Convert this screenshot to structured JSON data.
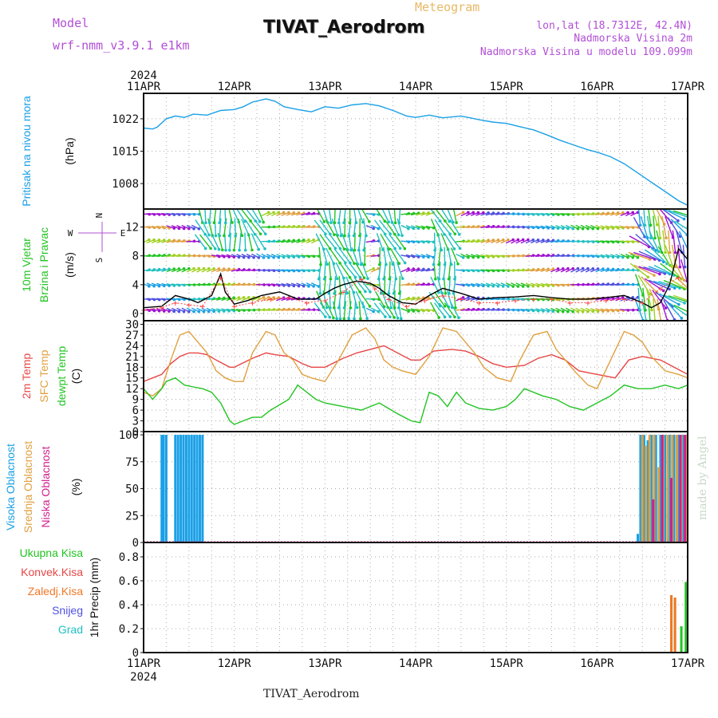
{
  "header": {
    "model_label": "Model",
    "model_name": "wrf-nmm_v3.9.1 e1km",
    "title": "TIVAT_Aerodrom",
    "meteogram_label": "Meteogram",
    "coords": "lon,lat (18.7312E, 42.4N)",
    "elev_station": "Nadmorska Visina 2m",
    "elev_model": "Nadmorska Visina u modelu 109.099m"
  },
  "footer": {
    "station": "TIVAT_Aerodrom",
    "credit": "made by Angel"
  },
  "colors": {
    "pressure": "#1aa0e6",
    "temp2m": "#e64646",
    "sfc_temp": "#e0a040",
    "dewpt": "#22c422",
    "wind_speed": "#000000",
    "wind_gust": "#ff4040",
    "high_cloud": "#1aa0e6",
    "mid_cloud": "#e0a040",
    "low_cloud": "#d0208c",
    "precip_total": "#22c422",
    "precip_conv": "#e64646",
    "precip_frozen": "#f07828",
    "snow": "#5050e0",
    "graupel": "#20c0c0",
    "wind_arrows": [
      "#a010d0",
      "#5050e0",
      "#1aa0e6",
      "#20c0c0",
      "#22c422",
      "#a0d020",
      "#e0a040"
    ]
  },
  "chart_data": {
    "type": "line",
    "year": "2024",
    "x_ticks": [
      "11APR",
      "12APR",
      "13APR",
      "14APR",
      "15APR",
      "16APR",
      "17APR"
    ],
    "xlim_days": [
      0,
      6
    ],
    "grid": "dotted",
    "panels": [
      {
        "id": "pressure",
        "ylabels": [
          "Pritisak na nivou mora",
          "(hPa)"
        ],
        "yticks": [
          1008,
          1015,
          1022
        ],
        "ylim": [
          1002.5,
          1027.5
        ],
        "series": [
          {
            "name": "Pritisak na nivou mora",
            "type": "line",
            "x": [
              0,
              0.1,
              0.15,
              0.25,
              0.35,
              0.45,
              0.55,
              0.7,
              0.85,
              1.0,
              1.1,
              1.2,
              1.35,
              1.45,
              1.55,
              1.7,
              1.85,
              2.0,
              2.15,
              2.3,
              2.45,
              2.6,
              2.75,
              2.9,
              3.0,
              3.15,
              3.3,
              3.4,
              3.5,
              3.6,
              3.7,
              3.85,
              4.0,
              4.15,
              4.3,
              4.45,
              4.6,
              4.75,
              4.9,
              5.0,
              5.15,
              5.3,
              5.45,
              5.6,
              5.75,
              5.9,
              6.0
            ],
            "y": [
              1020,
              1019.8,
              1020.2,
              1022,
              1022.6,
              1022.3,
              1023,
              1022.8,
              1023.8,
              1024,
              1024.6,
              1025.6,
              1026.3,
              1025.8,
              1024.6,
              1024,
              1023.5,
              1024.6,
              1024.3,
              1025,
              1025.3,
              1024.8,
              1023.8,
              1022.6,
              1022.3,
              1022.8,
              1022.2,
              1022.4,
              1022.6,
              1022.2,
              1021.8,
              1021.3,
              1021,
              1020.3,
              1019.6,
              1018.5,
              1017.3,
              1016.3,
              1015.3,
              1014.8,
              1013.8,
              1012.3,
              1010.3,
              1008.3,
              1006.3,
              1004.3,
              1003.3
            ]
          }
        ]
      },
      {
        "id": "wind",
        "ylabels": [
          "10m Vjetar",
          "Brzina i Pravac",
          "(m/s)"
        ],
        "compass": [
          "N",
          "W",
          "E",
          "S"
        ],
        "yticks": [
          0,
          4,
          8,
          12
        ],
        "ylim": [
          -1,
          14.5
        ],
        "series": [
          {
            "name": "wind speed",
            "type": "line",
            "x": [
              0,
              0.2,
              0.35,
              0.5,
              0.6,
              0.75,
              0.85,
              0.9,
              1.0,
              1.15,
              1.3,
              1.5,
              1.7,
              1.9,
              2.0,
              2.1,
              2.2,
              2.35,
              2.5,
              2.6,
              2.7,
              2.85,
              3.0,
              3.15,
              3.3,
              3.5,
              3.7,
              3.9,
              4.1,
              4.3,
              4.5,
              4.7,
              4.9,
              5.1,
              5.3,
              5.5,
              5.6,
              5.7,
              5.8,
              5.9,
              6.0
            ],
            "y": [
              0.8,
              1,
              2.5,
              2,
              1.5,
              2.5,
              5.5,
              3,
              1.3,
              1.8,
              2.5,
              3,
              2,
              2,
              2.8,
              3.5,
              4,
              4.5,
              4.2,
              3.5,
              2.5,
              1.5,
              1.3,
              2.5,
              3.5,
              2.8,
              2,
              2.2,
              2.3,
              2.5,
              2.2,
              2,
              2,
              2.2,
              2.5,
              1.5,
              0.8,
              1.5,
              4,
              9,
              7.5
            ]
          },
          {
            "name": "wind gust",
            "type": "markers",
            "x": [
              0,
              0.2,
              0.35,
              0.5,
              0.65,
              0.85,
              1.0,
              1.2,
              1.4,
              1.6,
              1.8,
              2.0,
              2.2,
              2.4,
              2.55,
              2.7,
              2.9,
              3.1,
              3.3,
              3.5,
              3.7,
              3.9,
              4.1,
              4.3,
              4.5,
              4.7,
              4.9,
              5.1,
              5.3,
              5.5,
              5.7,
              5.9
            ],
            "y": [
              0.5,
              0.8,
              1.5,
              1.2,
              1,
              5,
              1,
              1.5,
              2,
              2.2,
              1.5,
              1.8,
              3,
              4.8,
              3.5,
              2,
              1,
              1.8,
              2.5,
              2,
              1.5,
              1.5,
              1.8,
              2,
              2,
              1.5,
              1.5,
              1.8,
              2,
              1.5,
              3.5,
              5
            ]
          }
        ]
      },
      {
        "id": "temperature",
        "ylabels": [
          "2m Temp",
          "SFC Temp",
          "dewpt Temp",
          "(C)"
        ],
        "yticks": [
          0,
          3,
          6,
          9,
          12,
          15,
          18,
          21,
          24,
          27,
          30
        ],
        "ylim": [
          0,
          31
        ],
        "series": [
          {
            "name": "2m Temp",
            "type": "line",
            "x": [
              0,
              0.1,
              0.2,
              0.3,
              0.4,
              0.5,
              0.6,
              0.7,
              0.8,
              0.95,
              1.0,
              1.2,
              1.35,
              1.45,
              1.6,
              1.75,
              1.85,
              2.0,
              2.2,
              2.35,
              2.5,
              2.65,
              2.8,
              2.95,
              3.05,
              3.2,
              3.4,
              3.55,
              3.7,
              3.85,
              4.0,
              4.2,
              4.35,
              4.5,
              4.65,
              4.8,
              5.0,
              5.2,
              5.35,
              5.5,
              5.7,
              5.85,
              6.0
            ],
            "y": [
              14,
              15,
              16,
              19,
              21,
              22,
              22,
              21.5,
              20,
              18,
              18,
              20.5,
              22,
              21.5,
              21,
              19,
              18,
              18,
              20.5,
              22,
              23,
              24,
              22,
              20,
              20,
              22.5,
              23,
              22.5,
              21,
              19,
              18,
              18.5,
              20.5,
              21.5,
              20,
              17,
              16,
              15,
              20,
              21,
              20,
              18,
              16
            ]
          },
          {
            "name": "SFC Temp",
            "type": "line",
            "x": [
              0,
              0.1,
              0.2,
              0.3,
              0.4,
              0.5,
              0.6,
              0.7,
              0.8,
              0.9,
              1.0,
              1.1,
              1.2,
              1.35,
              1.45,
              1.55,
              1.65,
              1.75,
              1.85,
              2.0,
              2.15,
              2.3,
              2.45,
              2.55,
              2.65,
              2.75,
              2.85,
              3.0,
              3.15,
              3.3,
              3.45,
              3.55,
              3.65,
              3.75,
              3.9,
              4.05,
              4.15,
              4.3,
              4.45,
              4.55,
              4.65,
              4.75,
              4.9,
              5.0,
              5.15,
              5.3,
              5.4,
              5.5,
              5.6,
              5.75,
              5.9,
              6.0
            ],
            "y": [
              11,
              10,
              12,
              20,
              27,
              28,
              25,
              22,
              17,
              15,
              14,
              14,
              22,
              28,
              27,
              22,
              20,
              16,
              15,
              14,
              20,
              27,
              29,
              26,
              20,
              18,
              17,
              16,
              21,
              29,
              28,
              25,
              22,
              18,
              15,
              14,
              20,
              27,
              28,
              23,
              20,
              17,
              13,
              12,
              20,
              28,
              27,
              25,
              21,
              17,
              16,
              15
            ]
          },
          {
            "name": "dewpt Temp",
            "type": "line",
            "x": [
              0,
              0.1,
              0.2,
              0.25,
              0.35,
              0.45,
              0.55,
              0.65,
              0.75,
              0.85,
              0.95,
              1.0,
              1.1,
              1.2,
              1.3,
              1.4,
              1.5,
              1.6,
              1.7,
              1.8,
              1.9,
              2.0,
              2.2,
              2.4,
              2.6,
              2.7,
              2.8,
              2.95,
              3.05,
              3.15,
              3.25,
              3.35,
              3.45,
              3.55,
              3.7,
              3.85,
              4.0,
              4.1,
              4.2,
              4.4,
              4.55,
              4.7,
              4.85,
              5.0,
              5.15,
              5.3,
              5.45,
              5.6,
              5.75,
              5.9,
              6.0
            ],
            "y": [
              12,
              9,
              12,
              14,
              15,
              13,
              12.5,
              12,
              11,
              8,
              3,
              2,
              3,
              4,
              4,
              6,
              7.5,
              9,
              13,
              11,
              9,
              8,
              7,
              6,
              8,
              6.5,
              5,
              3,
              2.5,
              11,
              10,
              7,
              11,
              8,
              6.5,
              6,
              7,
              9,
              12,
              10,
              9,
              7,
              6,
              8,
              10,
              13,
              12,
              12,
              13,
              12,
              13
            ]
          }
        ]
      },
      {
        "id": "clouds",
        "ylabels": [
          "Visoka Oblacnost",
          "Srednja Oblacnost",
          "Niska Oblacnost",
          "(%)"
        ],
        "yticks": [
          0,
          25,
          50,
          75,
          100
        ],
        "ylim": [
          0,
          103
        ],
        "series": [
          {
            "name": "Visoka Oblacnost",
            "type": "bar",
            "x": [
              0.2,
              0.22,
              0.25,
              0.35,
              0.38,
              0.41,
              0.44,
              0.47,
              0.5,
              0.53,
              0.56,
              0.59,
              0.62,
              0.65,
              5.45,
              5.48,
              5.52,
              5.56,
              5.6,
              5.65,
              5.7,
              5.75,
              5.8,
              5.85,
              5.9,
              5.95
            ],
            "y": [
              100,
              100,
              100,
              100,
              100,
              100,
              100,
              100,
              100,
              100,
              100,
              100,
              100,
              100,
              8,
              100,
              100,
              95,
              100,
              100,
              100,
              100,
              100,
              100,
              100,
              100
            ]
          },
          {
            "name": "Srednja Oblacnost",
            "type": "bar",
            "x": [
              5.5,
              5.54,
              5.58,
              5.63,
              5.68,
              5.73,
              5.78,
              5.83,
              5.88,
              5.93,
              5.98
            ],
            "y": [
              100,
              90,
              100,
              100,
              70,
              100,
              100,
              100,
              100,
              100,
              100
            ]
          },
          {
            "name": "Niska Oblacnost",
            "type": "bar",
            "x": [
              5.62,
              5.72,
              5.82,
              5.92,
              5.97
            ],
            "y": [
              40,
              100,
              60,
              100,
              100
            ]
          }
        ]
      },
      {
        "id": "precip",
        "ylabels": [
          "1hr Precip (mm)"
        ],
        "legend": [
          "Ukupna Kisa",
          "Konvek.Kisa",
          "Zaledj.Kisa",
          "Snijeg",
          "Grad"
        ],
        "yticks": [
          0,
          0.2,
          0.4,
          0.6,
          0.8
        ],
        "ylim": [
          0,
          0.92
        ],
        "series": [
          {
            "name": "Ukupna Kisa",
            "type": "bar",
            "x": [
              5.82,
              5.86,
              5.93,
              5.98
            ],
            "y": [
              0.48,
              0.46,
              0.22,
              0.59
            ]
          },
          {
            "name": "Zaledj.Kisa",
            "type": "bar",
            "x": [
              5.82,
              5.86
            ],
            "y": [
              0.48,
              0.46
            ]
          }
        ]
      }
    ]
  }
}
